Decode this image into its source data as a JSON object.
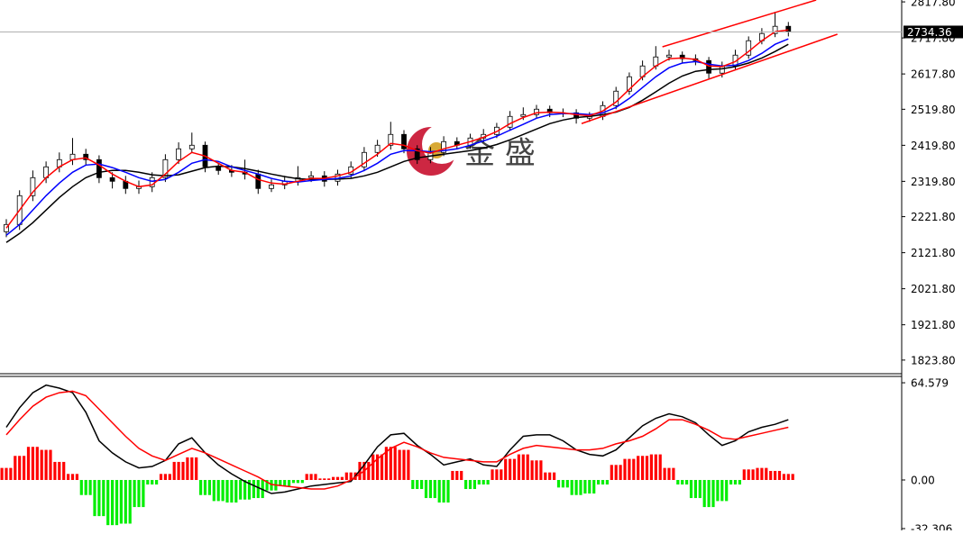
{
  "chart_data": [
    {
      "type": "candlestick",
      "ylim": [
        1786,
        2823
      ],
      "yticks": [
        {
          "value": 2817.8,
          "label": "2817.80"
        },
        {
          "value": 2717.8,
          "label": "2717.80"
        },
        {
          "value": 2617.8,
          "label": "2617.80"
        },
        {
          "value": 2519.8,
          "label": "2519.80"
        },
        {
          "value": 2419.8,
          "label": "2419.80"
        },
        {
          "value": 2319.8,
          "label": "2319.80"
        },
        {
          "value": 2221.8,
          "label": "2221.80"
        },
        {
          "value": 2121.8,
          "label": "2121.80"
        },
        {
          "value": 2021.8,
          "label": "2021.80"
        },
        {
          "value": 1921.8,
          "label": "1921.80"
        },
        {
          "value": 1823.8,
          "label": "1823.80"
        }
      ],
      "up_color": "#ffffff",
      "down_color": "#000000",
      "edge_color": "#000000",
      "open": [
        2180,
        2200,
        2280,
        2330,
        2360,
        2380,
        2395,
        2380,
        2330,
        2320,
        2300,
        2305,
        2330,
        2380,
        2410,
        2420,
        2360,
        2350,
        2345,
        2340,
        2300,
        2310,
        2320,
        2330,
        2335,
        2320,
        2340,
        2360,
        2400,
        2420,
        2450,
        2410,
        2380,
        2400,
        2430,
        2420,
        2440,
        2450,
        2470,
        2500,
        2505,
        2520,
        2510,
        2510,
        2495,
        2500,
        2530,
        2570,
        2610,
        2640,
        2665,
        2670,
        2660,
        2655,
        2620,
        2640,
        2670,
        2710,
        2730,
        2750
      ],
      "high": [
        2215,
        2295,
        2350,
        2375,
        2400,
        2440,
        2410,
        2392,
        2345,
        2335,
        2322,
        2345,
        2395,
        2428,
        2455,
        2430,
        2372,
        2365,
        2380,
        2352,
        2325,
        2335,
        2362,
        2348,
        2348,
        2352,
        2375,
        2415,
        2435,
        2485,
        2462,
        2420,
        2415,
        2445,
        2442,
        2452,
        2465,
        2482,
        2515,
        2525,
        2532,
        2530,
        2522,
        2520,
        2512,
        2542,
        2582,
        2622,
        2655,
        2695,
        2685,
        2680,
        2672,
        2665,
        2652,
        2685,
        2722,
        2745,
        2790,
        2762
      ],
      "low": [
        2165,
        2185,
        2265,
        2315,
        2345,
        2365,
        2365,
        2315,
        2300,
        2285,
        2285,
        2290,
        2318,
        2368,
        2398,
        2345,
        2338,
        2332,
        2325,
        2285,
        2290,
        2298,
        2308,
        2318,
        2305,
        2308,
        2328,
        2348,
        2388,
        2408,
        2398,
        2368,
        2370,
        2390,
        2408,
        2410,
        2428,
        2440,
        2460,
        2490,
        2495,
        2498,
        2498,
        2480,
        2485,
        2490,
        2520,
        2560,
        2600,
        2630,
        2655,
        2648,
        2642,
        2605,
        2608,
        2630,
        2660,
        2700,
        2720,
        2722
      ],
      "close": [
        2200,
        2280,
        2330,
        2360,
        2380,
        2395,
        2380,
        2330,
        2320,
        2300,
        2305,
        2330,
        2380,
        2410,
        2420,
        2360,
        2350,
        2345,
        2340,
        2300,
        2310,
        2320,
        2330,
        2335,
        2320,
        2340,
        2360,
        2400,
        2420,
        2450,
        2410,
        2380,
        2400,
        2430,
        2420,
        2440,
        2450,
        2470,
        2500,
        2505,
        2520,
        2510,
        2510,
        2495,
        2500,
        2530,
        2570,
        2610,
        2640,
        2665,
        2670,
        2660,
        2655,
        2620,
        2640,
        2670,
        2710,
        2730,
        2750,
        2734.36
      ],
      "series": [
        {
          "color": "#000000",
          "values": [
            2150,
            2175,
            2205,
            2240,
            2275,
            2305,
            2330,
            2345,
            2350,
            2350,
            2345,
            2338,
            2335,
            2338,
            2348,
            2358,
            2362,
            2360,
            2355,
            2348,
            2340,
            2333,
            2327,
            2325,
            2325,
            2326,
            2328,
            2335,
            2345,
            2360,
            2375,
            2385,
            2390,
            2395,
            2400,
            2405,
            2412,
            2422,
            2435,
            2450,
            2465,
            2480,
            2490,
            2497,
            2500,
            2505,
            2512,
            2525,
            2545,
            2568,
            2592,
            2612,
            2625,
            2630,
            2632,
            2638,
            2648,
            2662,
            2680,
            2700
          ]
        },
        {
          "color": "#0000ff",
          "values": [
            2170,
            2200,
            2240,
            2280,
            2315,
            2345,
            2365,
            2368,
            2358,
            2345,
            2330,
            2320,
            2325,
            2345,
            2370,
            2380,
            2375,
            2360,
            2350,
            2340,
            2328,
            2320,
            2318,
            2322,
            2325,
            2328,
            2335,
            2350,
            2370,
            2395,
            2405,
            2405,
            2402,
            2405,
            2410,
            2420,
            2432,
            2445,
            2462,
            2478,
            2495,
            2505,
            2508,
            2508,
            2505,
            2510,
            2525,
            2550,
            2580,
            2610,
            2635,
            2648,
            2652,
            2645,
            2640,
            2642,
            2655,
            2675,
            2700,
            2715
          ]
        },
        {
          "color": "#ff0000",
          "values": [
            2190,
            2240,
            2290,
            2330,
            2360,
            2380,
            2385,
            2365,
            2340,
            2320,
            2305,
            2310,
            2340,
            2375,
            2400,
            2390,
            2370,
            2350,
            2345,
            2325,
            2315,
            2312,
            2320,
            2328,
            2328,
            2335,
            2345,
            2370,
            2395,
            2425,
            2420,
            2405,
            2398,
            2410,
            2420,
            2430,
            2442,
            2458,
            2480,
            2497,
            2510,
            2512,
            2510,
            2505,
            2502,
            2515,
            2540,
            2575,
            2610,
            2640,
            2660,
            2662,
            2658,
            2640,
            2638,
            2652,
            2680,
            2710,
            2735,
            2740
          ]
        }
      ],
      "trendlines": [
        {
          "color": "#ff0000",
          "x": [
            49.5,
            61.1
          ],
          "y": [
            2693,
            2823
          ]
        },
        {
          "color": "#ff0000",
          "x": [
            43.4,
            62.7
          ],
          "y": [
            2480,
            2728
          ]
        }
      ],
      "current_price": 2734.36,
      "watermark": "金 盛"
    },
    {
      "type": "macd",
      "ylim": [
        -33.5,
        68.8
      ],
      "yticks": [
        64.579,
        {
          "value": 0,
          "label": "0.00"
        },
        -32.306
      ],
      "histogram": {
        "up_color": "#ff0000",
        "down_color": "#00ee00",
        "values": [
          8,
          16,
          22,
          20,
          12,
          4,
          -10,
          -24,
          -30,
          -29,
          -18,
          -3,
          4,
          12,
          15,
          -10,
          -14,
          -15,
          -13,
          -12,
          -7,
          -4,
          -2,
          4,
          1,
          2,
          5,
          12,
          17,
          22,
          20,
          -6,
          -12,
          -15,
          6,
          -6,
          -3,
          7,
          14,
          17,
          13,
          5,
          -5,
          -10,
          -9,
          -3,
          10,
          14,
          16,
          17,
          8,
          -3,
          -12,
          -18,
          -14,
          -3,
          7,
          8,
          6,
          4
        ]
      },
      "series": [
        {
          "color": "#000000",
          "values": [
            35,
            48,
            58,
            63,
            61,
            58,
            45,
            26,
            18,
            12,
            8,
            9,
            13,
            24,
            28,
            18,
            10,
            4,
            -1,
            -5,
            -9,
            -8,
            -6,
            -4,
            -3,
            -2,
            -1,
            10,
            22,
            30,
            31,
            23,
            17,
            10,
            12,
            14,
            10,
            9,
            20,
            29,
            30,
            30,
            26,
            20,
            17,
            16,
            20,
            28,
            36,
            41,
            44,
            42,
            38,
            30,
            23,
            26,
            32,
            35,
            37,
            40
          ]
        },
        {
          "color": "#ff0000",
          "values": [
            30,
            40,
            49,
            55,
            58,
            59,
            56,
            47,
            38,
            29,
            21,
            16,
            13,
            17,
            21,
            18,
            14,
            10,
            6,
            2,
            -3,
            -4,
            -5,
            -6,
            -6,
            -4,
            0,
            6,
            14,
            21,
            25,
            22,
            18,
            15,
            14,
            13,
            12,
            12,
            17,
            21,
            23,
            22,
            21,
            20,
            20,
            21,
            24,
            26,
            29,
            34,
            40,
            40,
            37,
            33,
            28,
            27,
            29,
            31,
            33,
            35
          ]
        }
      ]
    }
  ]
}
